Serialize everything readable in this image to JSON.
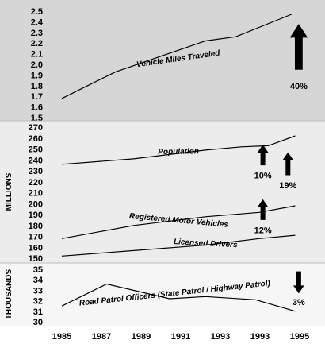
{
  "chart_data": {
    "type": "line",
    "x_ticks": [
      "1985",
      "1987",
      "1989",
      "1991",
      "1993",
      "1993",
      "1995"
    ],
    "panels": [
      {
        "id": "top",
        "unit_label": "",
        "ylim": [
          1.5,
          2.5
        ],
        "y_ticks": [
          "2.5",
          "2.4",
          "2.3",
          "2.2",
          "2.1",
          "2.0",
          "1.9",
          "1.8",
          "1.7",
          "1.6",
          "1.5"
        ],
        "background": "#d6d6d6",
        "series": [
          {
            "name": "Vehicle Miles Traveled",
            "x": [
              1985,
              1988,
              1993,
              1994.7,
              1997.8
            ],
            "y": [
              1.68,
              1.93,
              2.22,
              2.26,
              2.47
            ],
            "label_x": 1991.5,
            "label_y": 2.03,
            "label_rotate": 8
          }
        ],
        "arrows": [
          {
            "direction": "up",
            "percent": "40%",
            "x": 1998.2,
            "y_top": 2.38,
            "y_bottom": 1.95,
            "label_y": 1.8
          }
        ]
      },
      {
        "id": "middle",
        "unit_label": "MILLIONS",
        "ylim": [
          150,
          270
        ],
        "y_ticks": [
          "270",
          "260",
          "250",
          "240",
          "230",
          "220",
          "210",
          "200",
          "190",
          "180",
          "170",
          "160",
          "150"
        ],
        "background": "#ececec",
        "series": [
          {
            "name": "Population",
            "x": [
              1985,
              1989,
              1993,
              1995,
              1996.5,
              1998
            ],
            "y": [
              236,
              241,
              249,
              252,
              253,
              262
            ],
            "label_x": 1991.5,
            "label_y": 245.5,
            "label_rotate": 1
          },
          {
            "name": "Registered Motor Vehicles",
            "x": [
              1985,
              1989,
              1993,
              1996,
              1998
            ],
            "y": [
              168,
              180,
              188,
              192,
              198
            ],
            "label_x": 1991.5,
            "label_y": 182.5,
            "label_rotate": -5
          },
          {
            "name": "Licensed Drivers",
            "x": [
              1985,
              1989,
              1993,
              1996,
              1998
            ],
            "y": [
              152,
              157,
              162,
              168,
              171
            ],
            "label_x": 1993,
            "label_y": 161.5,
            "label_rotate": -3
          }
        ],
        "arrows": [
          {
            "direction": "up",
            "percent": "10%",
            "x": 1996.2,
            "y_top": 254,
            "y_bottom": 235,
            "label_y": 226
          },
          {
            "direction": "up",
            "percent": "19%",
            "x": 1997.6,
            "y_top": 247,
            "y_bottom": 226,
            "label_y": 217
          },
          {
            "direction": "up",
            "percent": "12%",
            "x": 1996.2,
            "y_top": 204,
            "y_bottom": 185,
            "label_y": 176
          }
        ]
      },
      {
        "id": "bottom",
        "unit_label": "THOUSANDS",
        "ylim": [
          30,
          35
        ],
        "y_ticks": [
          "35",
          "34",
          "33",
          "32",
          "31",
          "30"
        ],
        "background": "#f6f6f6",
        "series": [
          {
            "name": "Road Patrol Officers (State Patrol / Highway Patrol)",
            "x": [
              1985,
              1987.5,
              1991,
              1993,
              1995.8,
              1998
            ],
            "y": [
              31.5,
              33.6,
              32.2,
              32.4,
              32.1,
              31.0
            ],
            "label_x": 1991.3,
            "label_y": 32.5,
            "label_rotate": 6
          }
        ],
        "arrows": [
          {
            "direction": "down",
            "percent": "3%",
            "x": 1998.2,
            "y_top": 34.8,
            "y_bottom": 32.7,
            "label_y": 31.9
          }
        ]
      }
    ]
  }
}
